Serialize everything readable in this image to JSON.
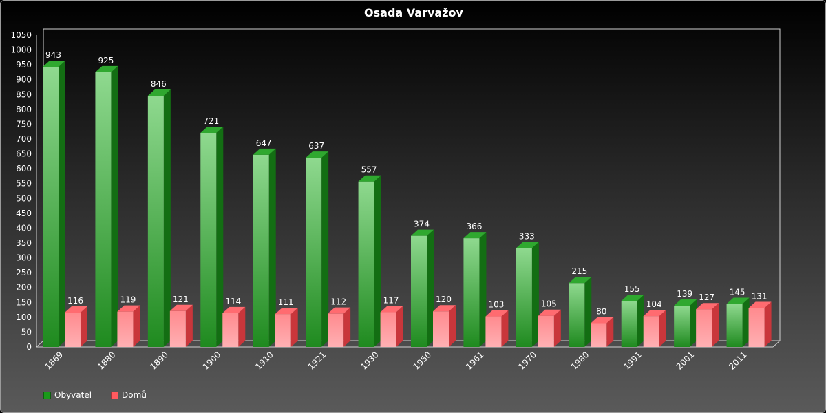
{
  "chart_data": {
    "type": "bar",
    "title": "Osada Varvažov",
    "xlabel": "",
    "ylabel": "",
    "ylim": [
      0,
      1050
    ],
    "ytick_step": 50,
    "categories": [
      "1869",
      "1880",
      "1890",
      "1900",
      "1910",
      "1921",
      "1930",
      "1950",
      "1961",
      "1970",
      "1980",
      "1991",
      "2001",
      "2011"
    ],
    "series": [
      {
        "name": "Obyvatel",
        "color": "#2a9a2a",
        "values": [
          943,
          925,
          846,
          721,
          647,
          637,
          557,
          374,
          366,
          333,
          215,
          155,
          139,
          145
        ]
      },
      {
        "name": "Domů",
        "color": "#ff5a5f",
        "values": [
          116,
          119,
          121,
          114,
          111,
          112,
          117,
          120,
          103,
          105,
          80,
          104,
          127,
          131
        ]
      }
    ],
    "legend_position": "bottom-left",
    "grid": false
  }
}
